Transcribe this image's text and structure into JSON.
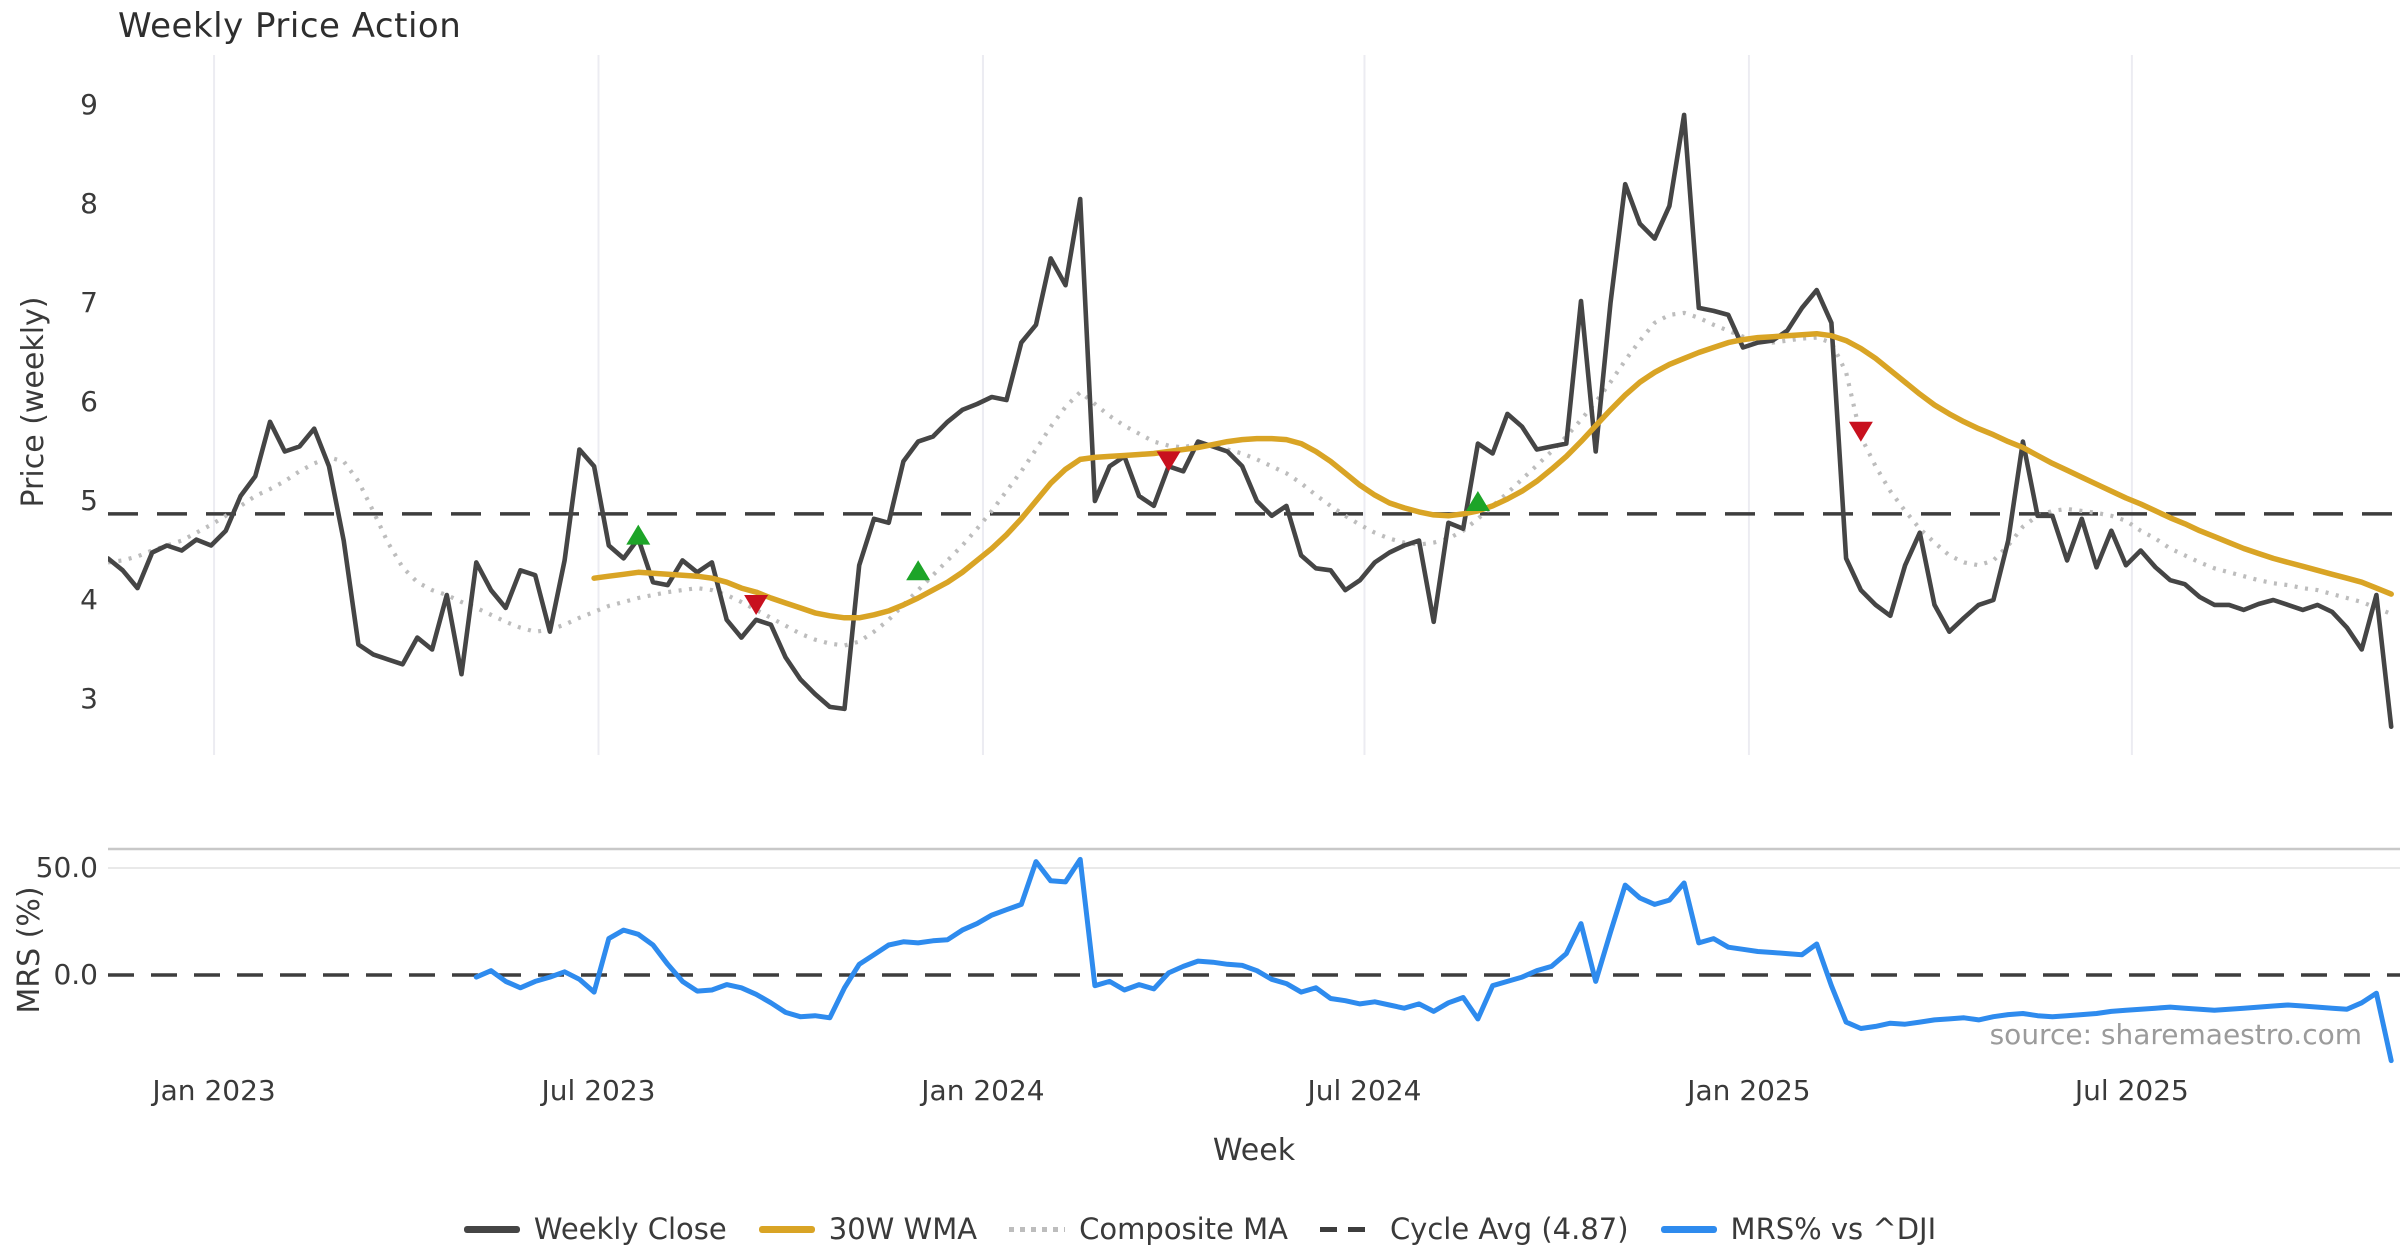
{
  "title": "Weekly Price Action",
  "xlabel": "Week",
  "watermark": "source: sharemaestro.com",
  "price_panel": {
    "ylabel": "Price (weekly)",
    "y_ticks": [
      "9",
      "8",
      "7",
      "6",
      "5",
      "4",
      "3"
    ],
    "cycle_avg_value": 4.87
  },
  "mrs_panel": {
    "ylabel": "MRS (%)",
    "y_ticks": [
      "50.0",
      "0.0"
    ]
  },
  "legend": [
    {
      "label": "Weekly Close",
      "color": "#454545",
      "style": "solid"
    },
    {
      "label": "30W WMA",
      "color": "#d9a425",
      "style": "solid"
    },
    {
      "label": "Composite MA",
      "color": "#bdbdbd",
      "style": "dotted"
    },
    {
      "label": "Cycle Avg (4.87)",
      "color": "#3d3d3d",
      "style": "dashed"
    },
    {
      "label": "MRS% vs ^DJI",
      "color": "#2e8bee",
      "style": "solid"
    }
  ],
  "colors": {
    "close": "#454545",
    "wma": "#d9a425",
    "composite": "#bdbdbd",
    "cycle": "#3d3d3d",
    "mrs": "#2e8bee",
    "buy": "#1da428",
    "sell": "#c8101e",
    "grid": "#ececf2",
    "panel_border": "#c8c8c8",
    "minor_grid": "#e9e9e9"
  },
  "chart_data": [
    {
      "panel": "price",
      "type": "line",
      "x_axis": {
        "unit": "week_index",
        "total_weeks": 156,
        "ticks": [
          {
            "label": "Jan 2023",
            "week": 7.2
          },
          {
            "label": "Jul 2023",
            "week": 33.3
          },
          {
            "label": "Jan 2024",
            "week": 59.4
          },
          {
            "label": "Jul 2024",
            "week": 85.3
          },
          {
            "label": "Jan 2025",
            "week": 111.4
          },
          {
            "label": "Jul 2025",
            "week": 137.4
          }
        ]
      },
      "y_axis": {
        "label": "Price (weekly)",
        "ticks": [
          9,
          8,
          7,
          6,
          5,
          4,
          3
        ],
        "range": [
          2.38,
          9.5
        ]
      },
      "series": [
        {
          "name": "Weekly Close",
          "style": "solid",
          "start_week": 0,
          "values": [
            4.42,
            4.3,
            4.12,
            4.48,
            4.55,
            4.5,
            4.61,
            4.55,
            4.7,
            5.05,
            5.25,
            5.8,
            5.5,
            5.55,
            5.73,
            5.35,
            4.6,
            3.55,
            3.45,
            3.4,
            3.35,
            3.62,
            3.5,
            4.05,
            3.25,
            4.38,
            4.1,
            3.92,
            4.3,
            4.25,
            3.68,
            4.4,
            5.52,
            5.35,
            4.55,
            4.42,
            4.62,
            4.18,
            4.15,
            4.4,
            4.28,
            4.38,
            3.8,
            3.62,
            3.8,
            3.75,
            3.42,
            3.2,
            3.05,
            2.92,
            2.9,
            4.35,
            4.82,
            4.78,
            5.4,
            5.6,
            5.65,
            5.8,
            5.92,
            5.98,
            6.05,
            6.02,
            6.6,
            6.78,
            7.45,
            7.18,
            8.05,
            5.0,
            5.35,
            5.45,
            5.05,
            4.95,
            5.35,
            5.3,
            5.6,
            5.55,
            5.5,
            5.35,
            5.0,
            4.85,
            4.95,
            4.45,
            4.32,
            4.3,
            4.1,
            4.2,
            4.38,
            4.48,
            4.55,
            4.6,
            3.78,
            4.78,
            4.72,
            5.58,
            5.48,
            5.88,
            5.75,
            5.52,
            5.55,
            5.58,
            7.02,
            5.5,
            7.0,
            8.2,
            7.8,
            7.65,
            7.98,
            8.9,
            6.95,
            6.92,
            6.88,
            6.55,
            6.6,
            6.62,
            6.72,
            6.95,
            7.13,
            6.8,
            4.42,
            4.1,
            3.95,
            3.84,
            4.35,
            4.68,
            3.95,
            3.68,
            3.82,
            3.95,
            4.0,
            4.6,
            5.6,
            4.85,
            4.85,
            4.4,
            4.82,
            4.33,
            4.7,
            4.35,
            4.5,
            4.33,
            4.2,
            4.16,
            4.03,
            3.95,
            3.95,
            3.9,
            3.96,
            4.0,
            3.95,
            3.9,
            3.95,
            3.88,
            3.72,
            3.5,
            4.05,
            2.72
          ]
        },
        {
          "name": "30W WMA",
          "style": "solid",
          "start_week": 33,
          "values": [
            4.22,
            4.24,
            4.26,
            4.28,
            4.27,
            4.26,
            4.25,
            4.24,
            4.22,
            4.18,
            4.12,
            4.08,
            4.02,
            3.97,
            3.92,
            3.87,
            3.84,
            3.82,
            3.82,
            3.85,
            3.89,
            3.95,
            4.02,
            4.1,
            4.18,
            4.28,
            4.4,
            4.52,
            4.66,
            4.82,
            5.0,
            5.18,
            5.32,
            5.42,
            5.44,
            5.45,
            5.46,
            5.47,
            5.48,
            5.5,
            5.52,
            5.54,
            5.57,
            5.6,
            5.62,
            5.63,
            5.63,
            5.62,
            5.58,
            5.5,
            5.4,
            5.28,
            5.16,
            5.06,
            4.98,
            4.93,
            4.89,
            4.86,
            4.85,
            4.87,
            4.9,
            4.95,
            5.02,
            5.1,
            5.2,
            5.32,
            5.45,
            5.6,
            5.76,
            5.92,
            6.07,
            6.2,
            6.3,
            6.38,
            6.44,
            6.5,
            6.55,
            6.6,
            6.63,
            6.65,
            6.66,
            6.67,
            6.68,
            6.69,
            6.67,
            6.62,
            6.54,
            6.44,
            6.32,
            6.2,
            6.08,
            5.97,
            5.88,
            5.8,
            5.73,
            5.67,
            5.6,
            5.54,
            5.46,
            5.38,
            5.31,
            5.24,
            5.17,
            5.1,
            5.03,
            4.97,
            4.9,
            4.83,
            4.77,
            4.7,
            4.64,
            4.58,
            4.52,
            4.47,
            4.42,
            4.38,
            4.34,
            4.3,
            4.26,
            4.22,
            4.18,
            4.12,
            4.06
          ]
        },
        {
          "name": "Composite MA",
          "style": "dotted",
          "start_week": 0,
          "values": [
            4.38,
            4.4,
            4.44,
            4.5,
            4.55,
            4.6,
            4.68,
            4.76,
            4.85,
            4.95,
            5.05,
            5.12,
            5.2,
            5.3,
            5.38,
            5.44,
            5.4,
            5.2,
            4.9,
            4.58,
            4.33,
            4.18,
            4.1,
            4.05,
            3.98,
            3.92,
            3.85,
            3.78,
            3.72,
            3.68,
            3.7,
            3.75,
            3.82,
            3.88,
            3.94,
            3.98,
            4.02,
            4.05,
            4.08,
            4.1,
            4.12,
            4.1,
            4.05,
            3.98,
            3.9,
            3.82,
            3.74,
            3.66,
            3.6,
            3.56,
            3.54,
            3.58,
            3.68,
            3.8,
            3.95,
            4.1,
            4.25,
            4.4,
            4.55,
            4.72,
            4.9,
            5.1,
            5.3,
            5.52,
            5.75,
            5.95,
            6.1,
            5.98,
            5.86,
            5.76,
            5.68,
            5.6,
            5.56,
            5.54,
            5.58,
            5.56,
            5.52,
            5.48,
            5.42,
            5.35,
            5.28,
            5.18,
            5.06,
            4.95,
            4.85,
            4.76,
            4.68,
            4.62,
            4.58,
            4.56,
            4.58,
            4.62,
            4.7,
            4.82,
            4.95,
            5.08,
            5.22,
            5.36,
            5.5,
            5.65,
            5.82,
            6.0,
            6.2,
            6.42,
            6.62,
            6.8,
            6.88,
            6.9,
            6.85,
            6.78,
            6.72,
            6.66,
            6.62,
            6.6,
            6.62,
            6.64,
            6.65,
            6.6,
            6.3,
            5.65,
            5.35,
            5.1,
            4.9,
            4.72,
            4.58,
            4.45,
            4.38,
            4.35,
            4.4,
            4.55,
            4.74,
            4.85,
            4.9,
            4.92,
            4.9,
            4.88,
            4.85,
            4.8,
            4.7,
            4.62,
            4.52,
            4.45,
            4.38,
            4.32,
            4.28,
            4.24,
            4.2,
            4.17,
            4.15,
            4.12,
            4.1,
            4.06,
            4.02,
            3.98,
            3.92,
            3.86
          ]
        },
        {
          "name": "Cycle Avg (4.87)",
          "style": "dashed",
          "value": 4.87
        }
      ],
      "markers": {
        "buy": {
          "shape": "triangle-up",
          "points": [
            [
              36,
              4.66
            ],
            [
              55,
              4.3
            ],
            [
              93,
              5.0
            ]
          ]
        },
        "sell": {
          "shape": "triangle-down",
          "points": [
            [
              44,
              3.95
            ],
            [
              72,
              5.4
            ],
            [
              119,
              5.7
            ]
          ]
        }
      }
    },
    {
      "panel": "mrs",
      "type": "line",
      "y_axis": {
        "label": "MRS (%)",
        "ticks": [
          50.0,
          0.0
        ],
        "range": [
          -49,
          60
        ],
        "minor_gridline": 50
      },
      "zero_line": {
        "style": "dashed",
        "value": 0
      },
      "series": [
        {
          "name": "MRS% vs ^DJI",
          "style": "solid",
          "start_week": 25,
          "values": [
            -1,
            2,
            -3,
            -6,
            -3,
            -1,
            1.5,
            -2,
            -8,
            17,
            21,
            19,
            14,
            5,
            -3,
            -7.5,
            -7,
            -4.5,
            -6,
            -9,
            -13,
            -17.5,
            -19.5,
            -19,
            -20,
            -6,
            5,
            9.5,
            14,
            15.5,
            15,
            16,
            16.5,
            21,
            24,
            28,
            30.5,
            33,
            53,
            44,
            43.5,
            54,
            -5,
            -3,
            -7,
            -4.5,
            -6.5,
            1,
            4,
            6.5,
            6,
            5,
            4.5,
            2,
            -2,
            -4,
            -8,
            -6,
            -11,
            -12,
            -13.5,
            -12.5,
            -14,
            -15.5,
            -13.5,
            -17,
            -13,
            -10.5,
            -20.5,
            -5,
            -3,
            -1,
            2,
            4,
            10,
            24,
            -3,
            20,
            42,
            36,
            33,
            35,
            43,
            15,
            17,
            13,
            12,
            11,
            10.5,
            10,
            9.5,
            14.5,
            -5,
            -22,
            -25,
            -24,
            -22.5,
            -23,
            -22,
            -21,
            -20.5,
            -20,
            -21,
            -19.5,
            -18.5,
            -18,
            -19,
            -19.5,
            -19,
            -18.5,
            -18,
            -17,
            -16.5,
            -16,
            -15.5,
            -15,
            -15.5,
            -16,
            -16.5,
            -16,
            -15.5,
            -15,
            -14.5,
            -14,
            -14.5,
            -15,
            -15.5,
            -16,
            -13,
            -8.5,
            -40
          ]
        }
      ]
    }
  ]
}
